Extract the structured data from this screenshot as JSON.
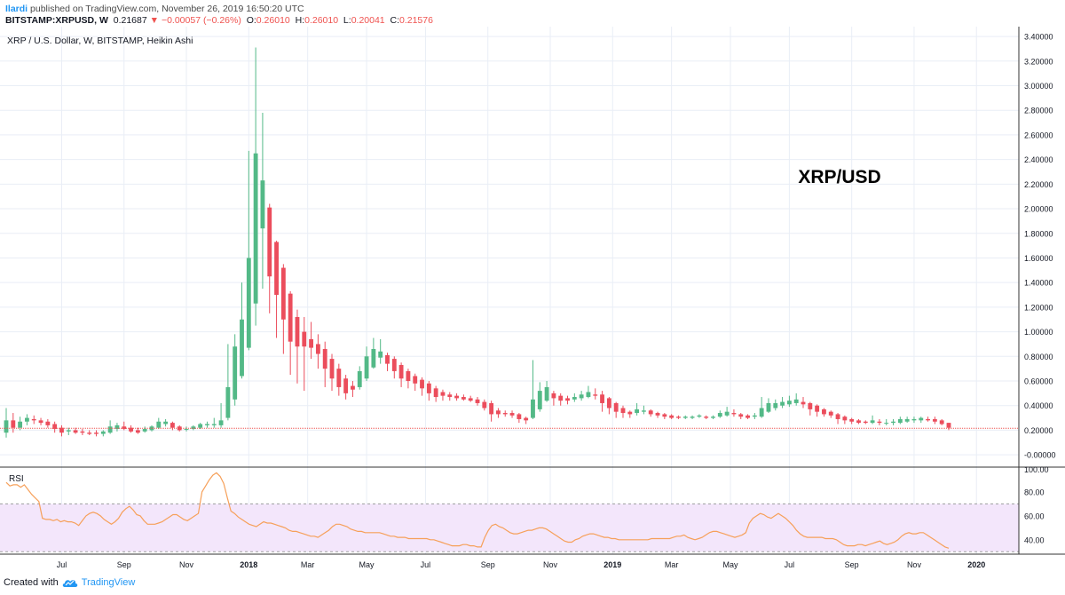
{
  "header": {
    "author": "Ilardi",
    "published": "published on TradingView.com, November 26, 2019 16:50:20 UTC",
    "symbol": "BITSTAMP:XRPUSD, W",
    "last": "0.21687",
    "arrow": "▼",
    "change": "−0.00057 (−0.26%)",
    "o_label": "O:",
    "o_value": "0.26010",
    "h_label": "H:",
    "h_value": "0.26010",
    "l_label": "L:",
    "l_value": "0.20041",
    "c_label": "C:",
    "c_value": "0.21576"
  },
  "footer": {
    "created_with": "Created with",
    "brand": "TradingView",
    "logo_icon": "tradingview-cloud-icon"
  },
  "colors": {
    "up": "#53b987",
    "down": "#eb4d5c",
    "rsi_line": "#f6a05a",
    "rsi_band": "#f3e6fb",
    "price_line": "#ef5350",
    "grid": "#e9eef6"
  },
  "chart_data": {
    "type": "candlestick",
    "title": "XRP / U.S. Dollar, W, BITSTAMP, Heikin Ashi",
    "annotation": "XRP/USD",
    "x_ticks": [
      "Jul",
      "Sep",
      "Nov",
      "2018",
      "Mar",
      "May",
      "Jul",
      "Sep",
      "Nov",
      "2019",
      "Mar",
      "May",
      "Jul",
      "Sep",
      "Nov",
      "2020"
    ],
    "y_ticks": [
      "3.40000",
      "3.20000",
      "3.00000",
      "2.80000",
      "2.60000",
      "2.40000",
      "2.20000",
      "2.00000",
      "1.80000",
      "1.60000",
      "1.40000",
      "1.20000",
      "1.00000",
      "0.80000",
      "0.60000",
      "0.40000",
      "0.20000",
      "0.00000"
    ],
    "ylim": [
      -0.1,
      3.48
    ],
    "current_price": 0.21576,
    "candles": [
      {
        "t": 0,
        "o": 0.18,
        "h": 0.38,
        "l": 0.14,
        "c": 0.28
      },
      {
        "t": 1,
        "o": 0.28,
        "h": 0.34,
        "l": 0.18,
        "c": 0.22
      },
      {
        "t": 2,
        "o": 0.22,
        "h": 0.31,
        "l": 0.2,
        "c": 0.27
      },
      {
        "t": 3,
        "o": 0.27,
        "h": 0.33,
        "l": 0.24,
        "c": 0.3
      },
      {
        "t": 4,
        "o": 0.29,
        "h": 0.32,
        "l": 0.25,
        "c": 0.28
      },
      {
        "t": 5,
        "o": 0.28,
        "h": 0.3,
        "l": 0.24,
        "c": 0.26
      },
      {
        "t": 6,
        "o": 0.27,
        "h": 0.29,
        "l": 0.22,
        "c": 0.24
      },
      {
        "t": 7,
        "o": 0.25,
        "h": 0.27,
        "l": 0.18,
        "c": 0.21
      },
      {
        "t": 8,
        "o": 0.22,
        "h": 0.24,
        "l": 0.15,
        "c": 0.18
      },
      {
        "t": 9,
        "o": 0.19,
        "h": 0.22,
        "l": 0.16,
        "c": 0.2
      },
      {
        "t": 10,
        "o": 0.2,
        "h": 0.22,
        "l": 0.17,
        "c": 0.18
      },
      {
        "t": 11,
        "o": 0.19,
        "h": 0.21,
        "l": 0.16,
        "c": 0.18
      },
      {
        "t": 12,
        "o": 0.18,
        "h": 0.2,
        "l": 0.16,
        "c": 0.17
      },
      {
        "t": 13,
        "o": 0.18,
        "h": 0.2,
        "l": 0.15,
        "c": 0.17
      },
      {
        "t": 14,
        "o": 0.17,
        "h": 0.2,
        "l": 0.15,
        "c": 0.19
      },
      {
        "t": 15,
        "o": 0.18,
        "h": 0.28,
        "l": 0.17,
        "c": 0.23
      },
      {
        "t": 16,
        "o": 0.21,
        "h": 0.26,
        "l": 0.19,
        "c": 0.24
      },
      {
        "t": 17,
        "o": 0.23,
        "h": 0.27,
        "l": 0.2,
        "c": 0.21
      },
      {
        "t": 18,
        "o": 0.22,
        "h": 0.24,
        "l": 0.18,
        "c": 0.19
      },
      {
        "t": 19,
        "o": 0.2,
        "h": 0.22,
        "l": 0.17,
        "c": 0.18
      },
      {
        "t": 20,
        "o": 0.19,
        "h": 0.23,
        "l": 0.18,
        "c": 0.21
      },
      {
        "t": 21,
        "o": 0.2,
        "h": 0.24,
        "l": 0.19,
        "c": 0.23
      },
      {
        "t": 22,
        "o": 0.22,
        "h": 0.3,
        "l": 0.21,
        "c": 0.27
      },
      {
        "t": 23,
        "o": 0.25,
        "h": 0.29,
        "l": 0.23,
        "c": 0.27
      },
      {
        "t": 24,
        "o": 0.26,
        "h": 0.27,
        "l": 0.2,
        "c": 0.22
      },
      {
        "t": 25,
        "o": 0.23,
        "h": 0.24,
        "l": 0.19,
        "c": 0.2
      },
      {
        "t": 26,
        "o": 0.21,
        "h": 0.23,
        "l": 0.19,
        "c": 0.21
      },
      {
        "t": 27,
        "o": 0.21,
        "h": 0.24,
        "l": 0.2,
        "c": 0.23
      },
      {
        "t": 28,
        "o": 0.22,
        "h": 0.26,
        "l": 0.21,
        "c": 0.25
      },
      {
        "t": 29,
        "o": 0.24,
        "h": 0.27,
        "l": 0.22,
        "c": 0.25
      },
      {
        "t": 30,
        "o": 0.24,
        "h": 0.3,
        "l": 0.22,
        "c": 0.25
      },
      {
        "t": 31,
        "o": 0.24,
        "h": 0.42,
        "l": 0.22,
        "c": 0.28
      },
      {
        "t": 32,
        "o": 0.3,
        "h": 0.9,
        "l": 0.28,
        "c": 0.55
      },
      {
        "t": 33,
        "o": 0.45,
        "h": 0.98,
        "l": 0.4,
        "c": 0.88
      },
      {
        "t": 34,
        "o": 0.64,
        "h": 1.4,
        "l": 0.62,
        "c": 1.1
      },
      {
        "t": 35,
        "o": 0.87,
        "h": 2.47,
        "l": 0.85,
        "c": 1.6
      },
      {
        "t": 36,
        "o": 1.23,
        "h": 3.31,
        "l": 1.05,
        "c": 2.45
      },
      {
        "t": 37,
        "o": 1.84,
        "h": 2.78,
        "l": 1.35,
        "c": 2.23
      },
      {
        "t": 38,
        "o": 2.01,
        "h": 2.04,
        "l": 1.15,
        "c": 1.45
      },
      {
        "t": 39,
        "o": 1.73,
        "h": 1.74,
        "l": 0.95,
        "c": 1.3
      },
      {
        "t": 40,
        "o": 1.52,
        "h": 1.55,
        "l": 0.82,
        "c": 1.1
      },
      {
        "t": 41,
        "o": 1.31,
        "h": 1.33,
        "l": 0.65,
        "c": 0.92
      },
      {
        "t": 42,
        "o": 1.12,
        "h": 1.18,
        "l": 0.58,
        "c": 0.88
      },
      {
        "t": 43,
        "o": 1.0,
        "h": 1.12,
        "l": 0.52,
        "c": 0.88
      },
      {
        "t": 44,
        "o": 0.94,
        "h": 1.08,
        "l": 0.78,
        "c": 0.87
      },
      {
        "t": 45,
        "o": 0.9,
        "h": 0.98,
        "l": 0.7,
        "c": 0.82
      },
      {
        "t": 46,
        "o": 0.86,
        "h": 0.92,
        "l": 0.55,
        "c": 0.7
      },
      {
        "t": 47,
        "o": 0.78,
        "h": 0.82,
        "l": 0.52,
        "c": 0.62
      },
      {
        "t": 48,
        "o": 0.7,
        "h": 0.74,
        "l": 0.48,
        "c": 0.55
      },
      {
        "t": 49,
        "o": 0.62,
        "h": 0.65,
        "l": 0.45,
        "c": 0.5
      },
      {
        "t": 50,
        "o": 0.56,
        "h": 0.6,
        "l": 0.47,
        "c": 0.53
      },
      {
        "t": 51,
        "o": 0.55,
        "h": 0.72,
        "l": 0.53,
        "c": 0.68
      },
      {
        "t": 52,
        "o": 0.62,
        "h": 0.88,
        "l": 0.6,
        "c": 0.8
      },
      {
        "t": 53,
        "o": 0.71,
        "h": 0.95,
        "l": 0.7,
        "c": 0.86
      },
      {
        "t": 54,
        "o": 0.79,
        "h": 0.94,
        "l": 0.74,
        "c": 0.84
      },
      {
        "t": 55,
        "o": 0.81,
        "h": 0.83,
        "l": 0.68,
        "c": 0.74
      },
      {
        "t": 56,
        "o": 0.78,
        "h": 0.8,
        "l": 0.62,
        "c": 0.68
      },
      {
        "t": 57,
        "o": 0.73,
        "h": 0.75,
        "l": 0.55,
        "c": 0.62
      },
      {
        "t": 58,
        "o": 0.68,
        "h": 0.7,
        "l": 0.54,
        "c": 0.6
      },
      {
        "t": 59,
        "o": 0.64,
        "h": 0.66,
        "l": 0.52,
        "c": 0.58
      },
      {
        "t": 60,
        "o": 0.61,
        "h": 0.63,
        "l": 0.48,
        "c": 0.54
      },
      {
        "t": 61,
        "o": 0.58,
        "h": 0.6,
        "l": 0.44,
        "c": 0.5
      },
      {
        "t": 62,
        "o": 0.54,
        "h": 0.56,
        "l": 0.43,
        "c": 0.47
      },
      {
        "t": 63,
        "o": 0.51,
        "h": 0.53,
        "l": 0.44,
        "c": 0.48
      },
      {
        "t": 64,
        "o": 0.49,
        "h": 0.51,
        "l": 0.44,
        "c": 0.47
      },
      {
        "t": 65,
        "o": 0.48,
        "h": 0.5,
        "l": 0.44,
        "c": 0.46
      },
      {
        "t": 66,
        "o": 0.47,
        "h": 0.49,
        "l": 0.44,
        "c": 0.45
      },
      {
        "t": 67,
        "o": 0.46,
        "h": 0.48,
        "l": 0.43,
        "c": 0.44
      },
      {
        "t": 68,
        "o": 0.45,
        "h": 0.47,
        "l": 0.4,
        "c": 0.42
      },
      {
        "t": 69,
        "o": 0.43,
        "h": 0.45,
        "l": 0.36,
        "c": 0.38
      },
      {
        "t": 70,
        "o": 0.42,
        "h": 0.44,
        "l": 0.27,
        "c": 0.33
      },
      {
        "t": 71,
        "o": 0.36,
        "h": 0.38,
        "l": 0.3,
        "c": 0.33
      },
      {
        "t": 72,
        "o": 0.34,
        "h": 0.36,
        "l": 0.31,
        "c": 0.33
      },
      {
        "t": 73,
        "o": 0.34,
        "h": 0.36,
        "l": 0.3,
        "c": 0.32
      },
      {
        "t": 74,
        "o": 0.33,
        "h": 0.34,
        "l": 0.26,
        "c": 0.29
      },
      {
        "t": 75,
        "o": 0.3,
        "h": 0.31,
        "l": 0.25,
        "c": 0.28
      },
      {
        "t": 76,
        "o": 0.3,
        "h": 0.77,
        "l": 0.29,
        "c": 0.45
      },
      {
        "t": 77,
        "o": 0.37,
        "h": 0.59,
        "l": 0.35,
        "c": 0.52
      },
      {
        "t": 78,
        "o": 0.44,
        "h": 0.6,
        "l": 0.43,
        "c": 0.55
      },
      {
        "t": 79,
        "o": 0.5,
        "h": 0.52,
        "l": 0.4,
        "c": 0.46
      },
      {
        "t": 80,
        "o": 0.48,
        "h": 0.5,
        "l": 0.4,
        "c": 0.44
      },
      {
        "t": 81,
        "o": 0.46,
        "h": 0.48,
        "l": 0.41,
        "c": 0.44
      },
      {
        "t": 82,
        "o": 0.45,
        "h": 0.5,
        "l": 0.43,
        "c": 0.47
      },
      {
        "t": 83,
        "o": 0.46,
        "h": 0.52,
        "l": 0.44,
        "c": 0.49
      },
      {
        "t": 84,
        "o": 0.47,
        "h": 0.56,
        "l": 0.46,
        "c": 0.51
      },
      {
        "t": 85,
        "o": 0.49,
        "h": 0.54,
        "l": 0.45,
        "c": 0.48
      },
      {
        "t": 86,
        "o": 0.49,
        "h": 0.52,
        "l": 0.35,
        "c": 0.42
      },
      {
        "t": 87,
        "o": 0.46,
        "h": 0.47,
        "l": 0.33,
        "c": 0.38
      },
      {
        "t": 88,
        "o": 0.42,
        "h": 0.43,
        "l": 0.3,
        "c": 0.35
      },
      {
        "t": 89,
        "o": 0.38,
        "h": 0.4,
        "l": 0.3,
        "c": 0.34
      },
      {
        "t": 90,
        "o": 0.35,
        "h": 0.36,
        "l": 0.3,
        "c": 0.33
      },
      {
        "t": 91,
        "o": 0.34,
        "h": 0.42,
        "l": 0.32,
        "c": 0.37
      },
      {
        "t": 92,
        "o": 0.35,
        "h": 0.4,
        "l": 0.33,
        "c": 0.36
      },
      {
        "t": 93,
        "o": 0.36,
        "h": 0.37,
        "l": 0.31,
        "c": 0.33
      },
      {
        "t": 94,
        "o": 0.34,
        "h": 0.35,
        "l": 0.3,
        "c": 0.32
      },
      {
        "t": 95,
        "o": 0.33,
        "h": 0.34,
        "l": 0.29,
        "c": 0.31
      },
      {
        "t": 96,
        "o": 0.32,
        "h": 0.33,
        "l": 0.29,
        "c": 0.3
      },
      {
        "t": 97,
        "o": 0.31,
        "h": 0.32,
        "l": 0.29,
        "c": 0.3
      },
      {
        "t": 98,
        "o": 0.3,
        "h": 0.32,
        "l": 0.29,
        "c": 0.31
      },
      {
        "t": 99,
        "o": 0.3,
        "h": 0.32,
        "l": 0.29,
        "c": 0.31
      },
      {
        "t": 100,
        "o": 0.31,
        "h": 0.33,
        "l": 0.3,
        "c": 0.32
      },
      {
        "t": 101,
        "o": 0.31,
        "h": 0.32,
        "l": 0.29,
        "c": 0.3
      },
      {
        "t": 102,
        "o": 0.3,
        "h": 0.32,
        "l": 0.29,
        "c": 0.31
      },
      {
        "t": 103,
        "o": 0.31,
        "h": 0.36,
        "l": 0.3,
        "c": 0.34
      },
      {
        "t": 104,
        "o": 0.32,
        "h": 0.39,
        "l": 0.31,
        "c": 0.35
      },
      {
        "t": 105,
        "o": 0.34,
        "h": 0.37,
        "l": 0.31,
        "c": 0.33
      },
      {
        "t": 106,
        "o": 0.33,
        "h": 0.34,
        "l": 0.29,
        "c": 0.31
      },
      {
        "t": 107,
        "o": 0.32,
        "h": 0.33,
        "l": 0.29,
        "c": 0.3
      },
      {
        "t": 108,
        "o": 0.31,
        "h": 0.34,
        "l": 0.29,
        "c": 0.32
      },
      {
        "t": 109,
        "o": 0.31,
        "h": 0.47,
        "l": 0.3,
        "c": 0.38
      },
      {
        "t": 110,
        "o": 0.35,
        "h": 0.46,
        "l": 0.34,
        "c": 0.42
      },
      {
        "t": 111,
        "o": 0.38,
        "h": 0.45,
        "l": 0.36,
        "c": 0.42
      },
      {
        "t": 112,
        "o": 0.4,
        "h": 0.47,
        "l": 0.38,
        "c": 0.43
      },
      {
        "t": 113,
        "o": 0.41,
        "h": 0.48,
        "l": 0.39,
        "c": 0.44
      },
      {
        "t": 114,
        "o": 0.42,
        "h": 0.5,
        "l": 0.4,
        "c": 0.45
      },
      {
        "t": 115,
        "o": 0.43,
        "h": 0.47,
        "l": 0.38,
        "c": 0.41
      },
      {
        "t": 116,
        "o": 0.42,
        "h": 0.43,
        "l": 0.32,
        "c": 0.37
      },
      {
        "t": 117,
        "o": 0.4,
        "h": 0.41,
        "l": 0.31,
        "c": 0.35
      },
      {
        "t": 118,
        "o": 0.37,
        "h": 0.38,
        "l": 0.31,
        "c": 0.33
      },
      {
        "t": 119,
        "o": 0.35,
        "h": 0.36,
        "l": 0.3,
        "c": 0.32
      },
      {
        "t": 120,
        "o": 0.33,
        "h": 0.34,
        "l": 0.25,
        "c": 0.29
      },
      {
        "t": 121,
        "o": 0.31,
        "h": 0.32,
        "l": 0.25,
        "c": 0.28
      },
      {
        "t": 122,
        "o": 0.29,
        "h": 0.3,
        "l": 0.25,
        "c": 0.27
      },
      {
        "t": 123,
        "o": 0.28,
        "h": 0.29,
        "l": 0.25,
        "c": 0.26
      },
      {
        "t": 124,
        "o": 0.27,
        "h": 0.28,
        "l": 0.25,
        "c": 0.26
      },
      {
        "t": 125,
        "o": 0.26,
        "h": 0.32,
        "l": 0.25,
        "c": 0.28
      },
      {
        "t": 126,
        "o": 0.27,
        "h": 0.29,
        "l": 0.24,
        "c": 0.26
      },
      {
        "t": 127,
        "o": 0.26,
        "h": 0.29,
        "l": 0.24,
        "c": 0.26
      },
      {
        "t": 128,
        "o": 0.26,
        "h": 0.29,
        "l": 0.24,
        "c": 0.27
      },
      {
        "t": 129,
        "o": 0.26,
        "h": 0.31,
        "l": 0.25,
        "c": 0.29
      },
      {
        "t": 130,
        "o": 0.27,
        "h": 0.31,
        "l": 0.26,
        "c": 0.29
      },
      {
        "t": 131,
        "o": 0.28,
        "h": 0.31,
        "l": 0.26,
        "c": 0.29
      },
      {
        "t": 132,
        "o": 0.28,
        "h": 0.31,
        "l": 0.26,
        "c": 0.3
      },
      {
        "t": 133,
        "o": 0.29,
        "h": 0.31,
        "l": 0.27,
        "c": 0.28
      },
      {
        "t": 134,
        "o": 0.29,
        "h": 0.31,
        "l": 0.25,
        "c": 0.27
      },
      {
        "t": 135,
        "o": 0.28,
        "h": 0.29,
        "l": 0.24,
        "c": 0.25
      },
      {
        "t": 136,
        "o": 0.26,
        "h": 0.26,
        "l": 0.2,
        "c": 0.22
      }
    ],
    "rsi": {
      "label": "RSI",
      "y_ticks": [
        "100.00",
        "80.00",
        "60.00",
        "40.00"
      ],
      "ylim": [
        28,
        100
      ],
      "band": [
        30,
        70
      ],
      "values": [
        88,
        85,
        86,
        86,
        84,
        86,
        82,
        78,
        75,
        72,
        58,
        57,
        57,
        56,
        57,
        55,
        56,
        55,
        55,
        54,
        52,
        56,
        60,
        62,
        63,
        62,
        60,
        57,
        55,
        53,
        55,
        58,
        63,
        66,
        68,
        65,
        61,
        60,
        56,
        53,
        53,
        53,
        54,
        55,
        57,
        59,
        61,
        61,
        59,
        57,
        56,
        58,
        60,
        62,
        80,
        85,
        90,
        94,
        96,
        93,
        87,
        75,
        64,
        62,
        59,
        57,
        55,
        53,
        52,
        51,
        53,
        55,
        54,
        54,
        53,
        52,
        51,
        50,
        48,
        47,
        47,
        46,
        45,
        44,
        43,
        43,
        42,
        44,
        46,
        48,
        51,
        53,
        53,
        52,
        51,
        49,
        48,
        47,
        47,
        46,
        46,
        46,
        46,
        46,
        45,
        44,
        43,
        43,
        42,
        42,
        42,
        41,
        41,
        41,
        41,
        41,
        41,
        40,
        40,
        39,
        38,
        37,
        36,
        35,
        35,
        35,
        36,
        36,
        35,
        35,
        34,
        34,
        42,
        48,
        52,
        53,
        51,
        50,
        48,
        46,
        45,
        45,
        46,
        47,
        48,
        48,
        49,
        50,
        50,
        49,
        47,
        45,
        43,
        41,
        39,
        38,
        38,
        40,
        41,
        43,
        44,
        45,
        45,
        44,
        43,
        42,
        42,
        41,
        41,
        40,
        40,
        40,
        40,
        40,
        40,
        40,
        40,
        40,
        41,
        41,
        41,
        41,
        41,
        41,
        42,
        43,
        43,
        44,
        42,
        41,
        40,
        41,
        42,
        44,
        46,
        47,
        47,
        46,
        45,
        44,
        43,
        42,
        43,
        44,
        46,
        54,
        58,
        60,
        62,
        61,
        59,
        58,
        60,
        62,
        60,
        58,
        55,
        52,
        48,
        45,
        43,
        42,
        42,
        42,
        42,
        42,
        41,
        41,
        41,
        40,
        38,
        36,
        35,
        35,
        35,
        36,
        36,
        35,
        36,
        37,
        38,
        39,
        37,
        36,
        37,
        38,
        40,
        43,
        45,
        46,
        45,
        45,
        46,
        46,
        44,
        42,
        40,
        38,
        36,
        34,
        33
      ]
    }
  }
}
